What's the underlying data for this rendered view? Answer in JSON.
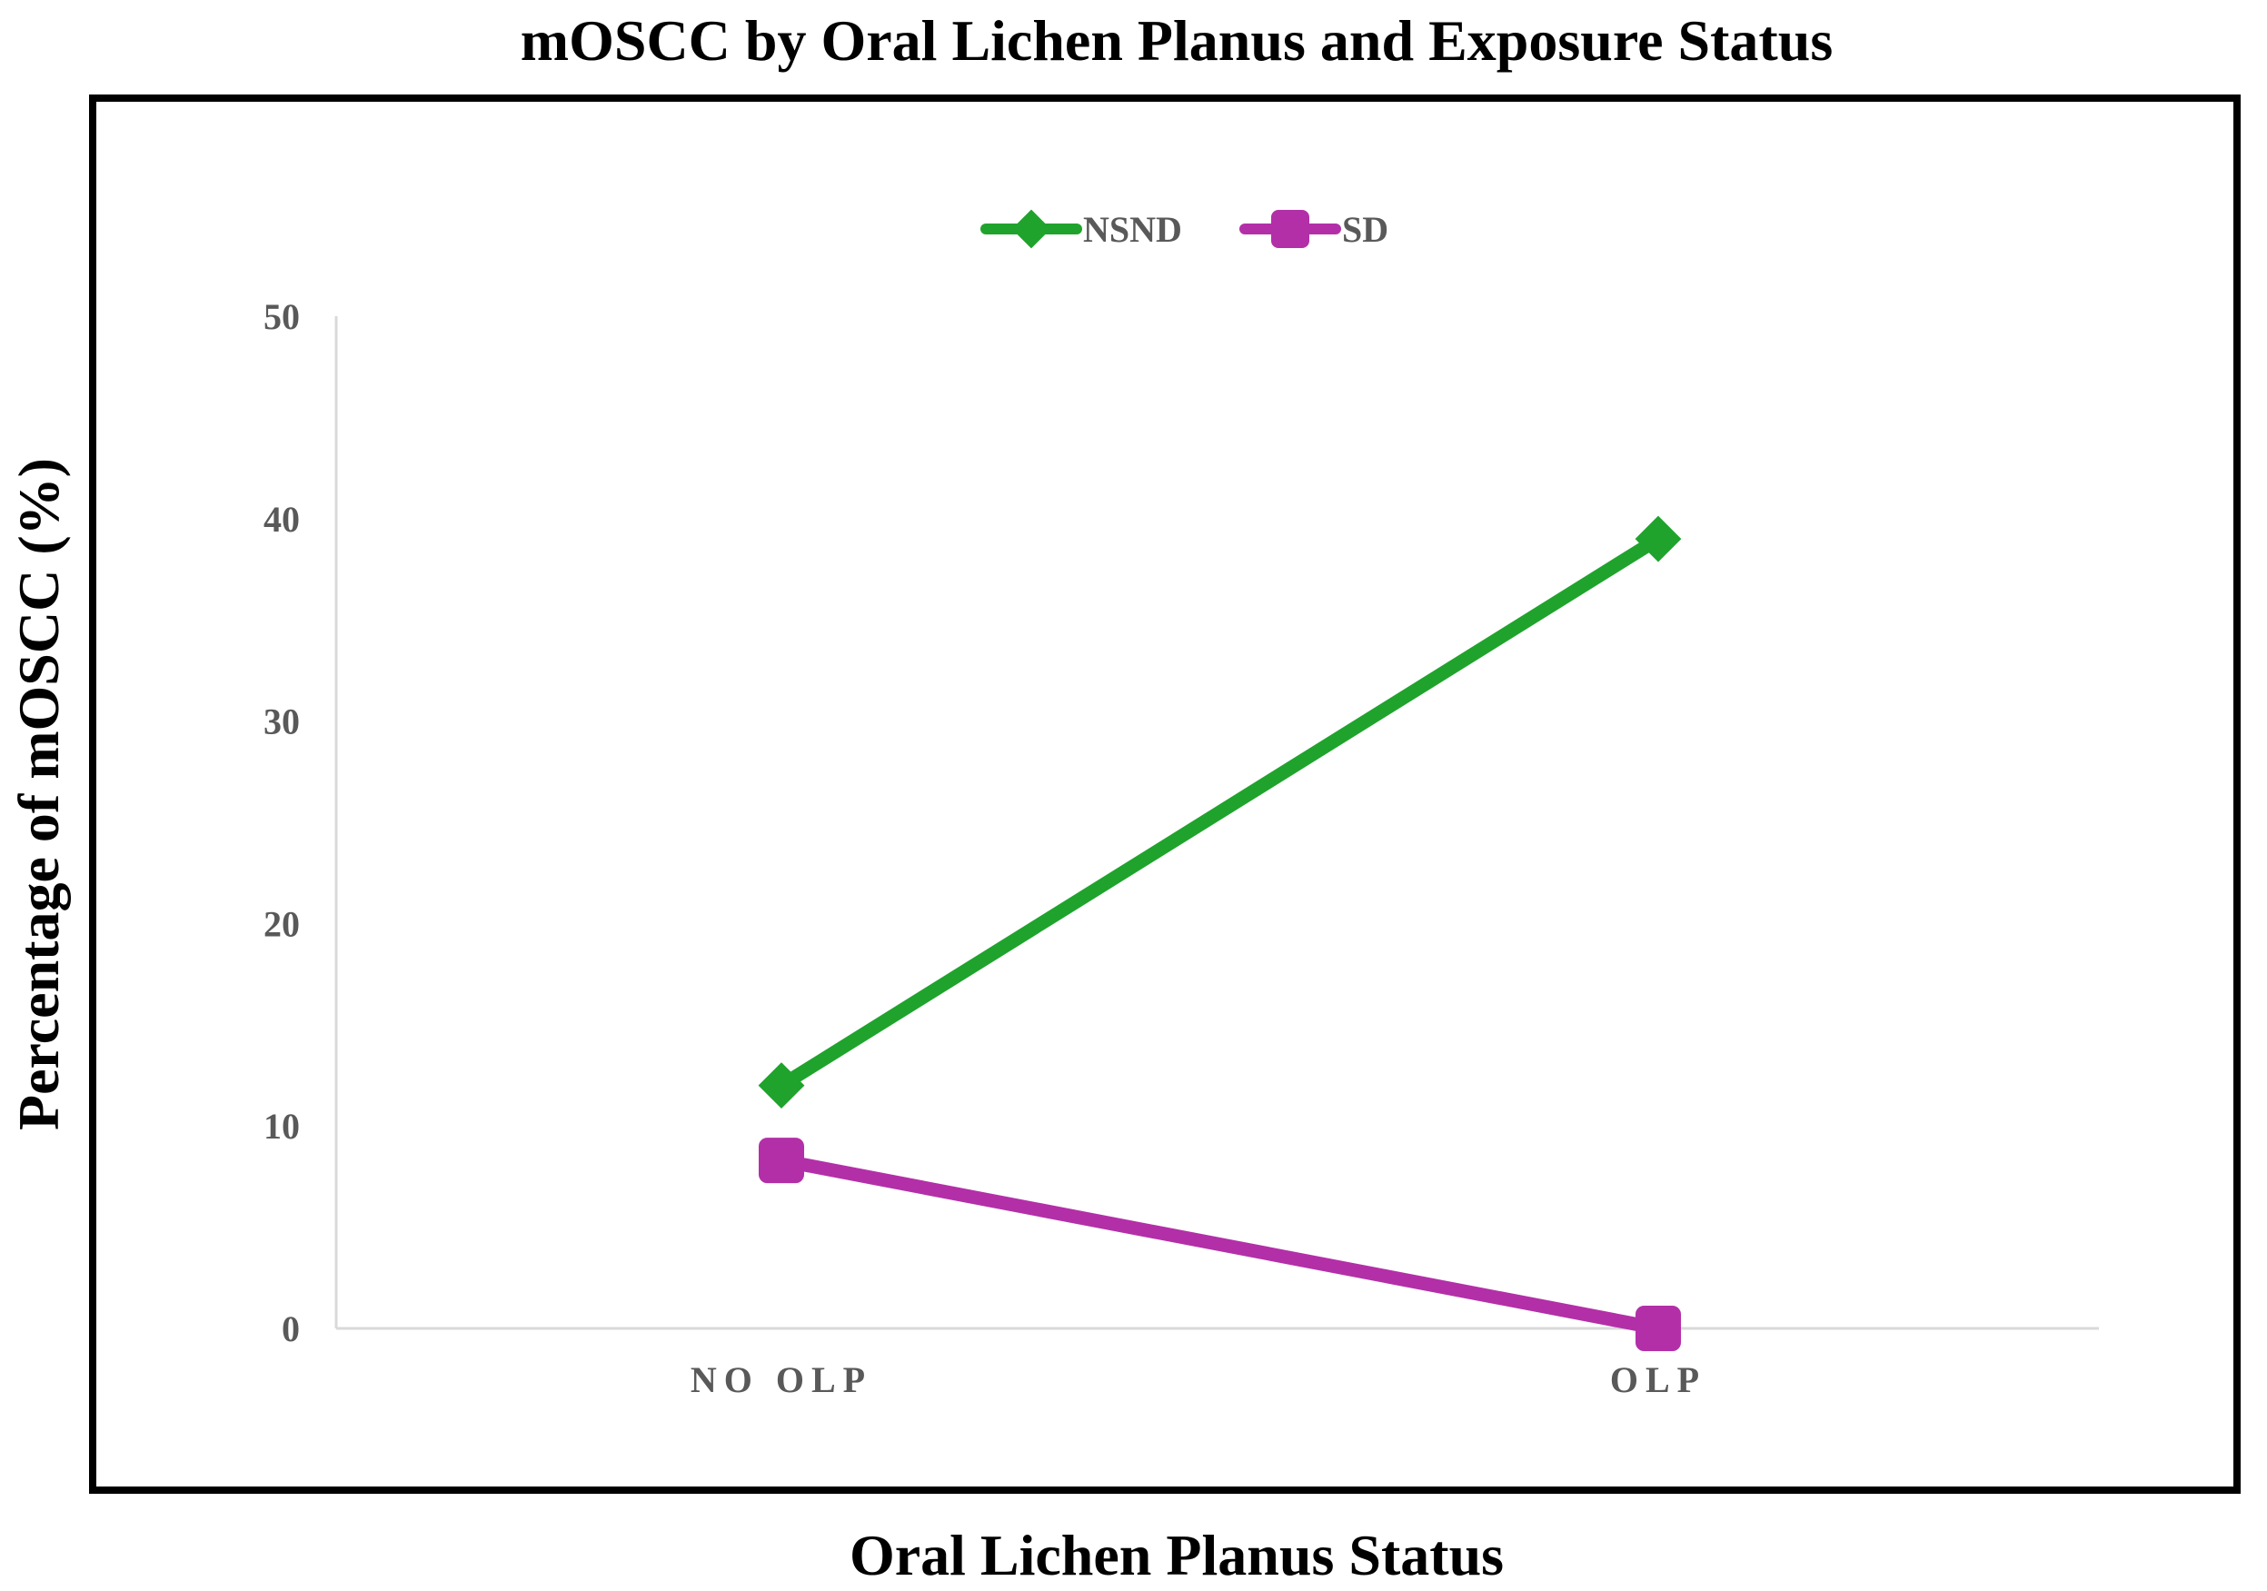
{
  "chart_data": {
    "type": "line",
    "title": "mOSCC by Oral Lichen Planus and Exposure Status",
    "xlabel": "Oral Lichen Planus Status",
    "ylabel": "Percentage of mOSCC (%)",
    "categories": [
      "NO OLP",
      "OLP"
    ],
    "ylim": [
      0,
      50
    ],
    "yticks": [
      0,
      10,
      20,
      30,
      40,
      50
    ],
    "grid": false,
    "legend_position": "top-center",
    "series": [
      {
        "name": "NSND",
        "values": [
          12,
          39
        ],
        "color": "#1fa32c",
        "marker": "diamond"
      },
      {
        "name": "SD",
        "values": [
          8.3,
          0
        ],
        "color": "#b32fa8",
        "marker": "square"
      }
    ]
  }
}
